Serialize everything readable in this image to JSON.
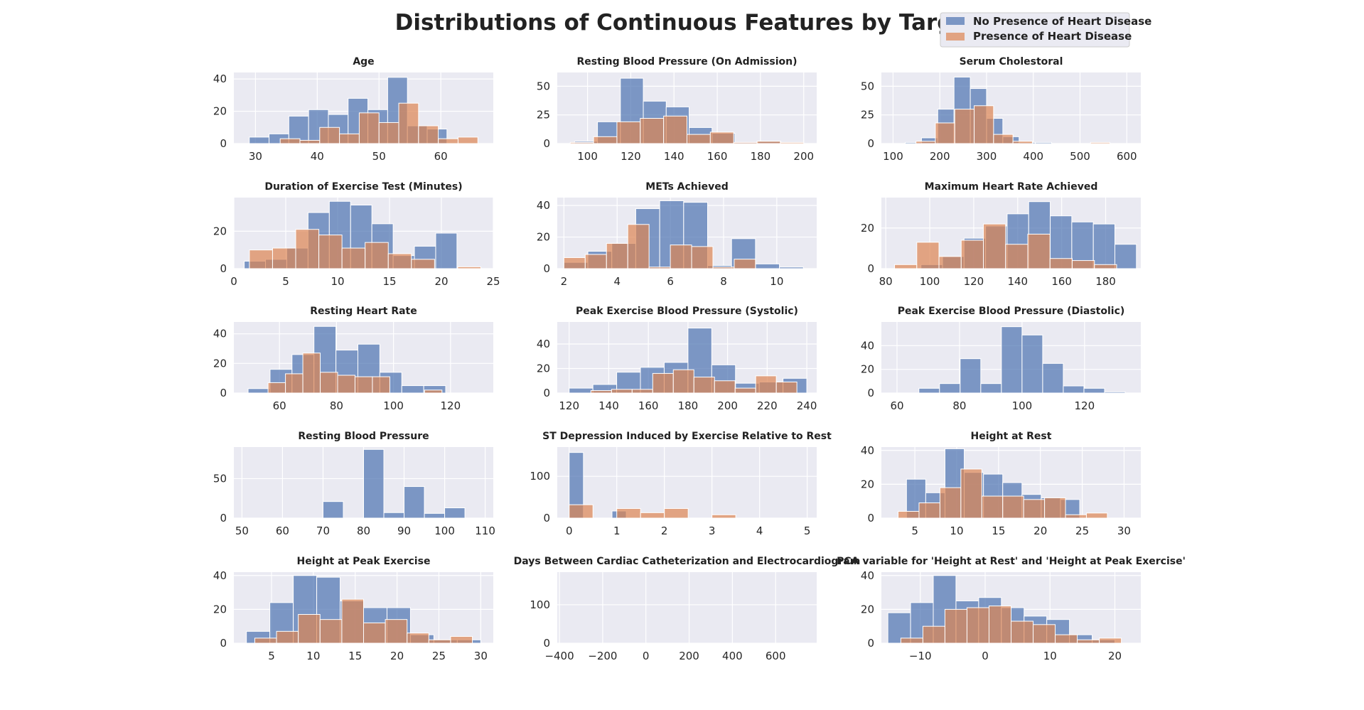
{
  "figure": {
    "title": "Distributions of Continuous Features by Target",
    "legend": [
      "No Presence of Heart Disease",
      "Presence of Heart Disease"
    ],
    "colors": {
      "no_disease": "#4c72b0",
      "disease": "#dd8452",
      "axes_bg": "#eaeaf2",
      "grid": "#ffffff"
    },
    "alpha": 0.7
  },
  "chart_data": [
    {
      "type": "histogram",
      "title": "Age",
      "xlim": [
        26.5,
        68.5
      ],
      "ylim": [
        0,
        44
      ],
      "xticks": [
        30,
        40,
        50,
        60
      ],
      "yticks": [
        0,
        20,
        40
      ],
      "series": [
        {
          "name": "No Presence of Heart Disease",
          "edges": [
            29,
            32.2,
            35.4,
            38.6,
            41.8,
            45,
            48.2,
            51.4,
            54.6,
            57.8,
            61
          ],
          "counts": [
            4,
            6,
            17,
            21,
            18,
            28,
            21,
            41,
            11,
            9
          ]
        },
        {
          "name": "Presence of Heart Disease",
          "edges": [
            34,
            37.2,
            40.4,
            43.6,
            46.8,
            50,
            53.2,
            56.4,
            59.6,
            62.8,
            66
          ],
          "counts": [
            3,
            2,
            10,
            6,
            19,
            13,
            25,
            11,
            3,
            4
          ]
        }
      ]
    },
    {
      "type": "histogram",
      "title": "Resting Blood Pressure (On Admission)",
      "xlim": [
        86,
        206
      ],
      "ylim": [
        0,
        62
      ],
      "xticks": [
        100,
        120,
        140,
        160,
        180,
        200
      ],
      "yticks": [
        0,
        25,
        50
      ],
      "series": [
        {
          "name": "No Presence of Heart Disease",
          "edges": [
            94,
            104.6,
            115.2,
            125.8,
            136.4,
            147,
            157.6,
            168.2,
            178.8,
            189.4,
            200
          ],
          "counts": [
            2,
            19,
            57,
            37,
            32,
            14,
            9,
            1,
            2,
            0
          ]
        },
        {
          "name": "Presence of Heart Disease",
          "edges": [
            92,
            102.8,
            113.6,
            124.4,
            135.2,
            146,
            156.8,
            167.6,
            178.4,
            189.2,
            200
          ],
          "counts": [
            1,
            6,
            19,
            22,
            24,
            8,
            10,
            1,
            2,
            1
          ]
        }
      ]
    },
    {
      "type": "histogram",
      "title": "Serum Cholestoral",
      "xlim": [
        75,
        630
      ],
      "ylim": [
        0,
        62
      ],
      "xticks": [
        100,
        200,
        300,
        400,
        500,
        600
      ],
      "yticks": [
        0,
        25,
        50
      ],
      "series": [
        {
          "name": "No Presence of Heart Disease",
          "edges": [
            126,
            160.8,
            195.6,
            230.4,
            265.2,
            300,
            334.8,
            369.6,
            404.4,
            439.2,
            474
          ],
          "counts": [
            1,
            5,
            30,
            58,
            48,
            22,
            6,
            1,
            1,
            0
          ]
        },
        {
          "name": "Presence of Heart Disease",
          "edges": [
            149,
            190.5,
            232,
            273.5,
            315,
            356.5,
            398,
            439.5,
            481,
            522.5,
            564
          ],
          "counts": [
            2,
            18,
            30,
            33,
            8,
            2,
            0,
            0,
            0,
            1
          ]
        }
      ]
    },
    {
      "type": "histogram",
      "title": "Duration of Exercise Test (Minutes)",
      "xlim": [
        0,
        25
      ],
      "ylim": [
        0,
        38
      ],
      "xticks": [
        0,
        5,
        10,
        15,
        20,
        25
      ],
      "yticks": [
        0,
        20
      ],
      "series": [
        {
          "name": "No Presence of Heart Disease",
          "edges": [
            1,
            3.05,
            5.1,
            7.15,
            9.2,
            11.25,
            13.3,
            15.35,
            17.4,
            19.45,
            21.5
          ],
          "counts": [
            4,
            5,
            11,
            30,
            36,
            34,
            24,
            7,
            12,
            19
          ]
        },
        {
          "name": "Presence of Heart Disease",
          "edges": [
            1.5,
            3.73,
            5.96,
            8.19,
            10.42,
            12.65,
            14.88,
            17.11,
            19.34,
            21.57,
            23.8
          ],
          "counts": [
            10,
            11,
            21,
            18,
            11,
            14,
            8,
            5,
            0,
            1
          ]
        }
      ]
    },
    {
      "type": "histogram",
      "title": "METs Achieved",
      "xlim": [
        1.75,
        11.5
      ],
      "ylim": [
        0,
        45
      ],
      "xticks": [
        2,
        4,
        6,
        8,
        10
      ],
      "yticks": [
        0,
        20,
        40
      ],
      "series": [
        {
          "name": "No Presence of Heart Disease",
          "edges": [
            2,
            2.9,
            3.8,
            4.7,
            5.6,
            6.5,
            7.4,
            8.3,
            9.2,
            10.1,
            11
          ],
          "counts": [
            4,
            11,
            16,
            38,
            43,
            42,
            2,
            19,
            3,
            1
          ]
        },
        {
          "name": "Presence of Heart Disease",
          "edges": [
            2,
            2.8,
            3.6,
            4.4,
            5.2,
            6,
            6.8,
            7.6,
            8.4,
            9.2,
            10
          ],
          "counts": [
            7,
            9,
            16,
            28,
            1,
            15,
            14,
            1,
            6,
            0
          ]
        }
      ]
    },
    {
      "type": "histogram",
      "title": "Maximum Heart Rate Achieved",
      "xlim": [
        78,
        196
      ],
      "ylim": [
        0,
        35
      ],
      "xticks": [
        80,
        100,
        120,
        140,
        160,
        180
      ],
      "yticks": [
        0,
        20
      ],
      "series": [
        {
          "name": "No Presence of Heart Disease",
          "edges": [
            96,
            105.8,
            115.6,
            125.4,
            135.2,
            145,
            154.8,
            164.6,
            174.4,
            184.2,
            194
          ],
          "counts": [
            2,
            6,
            15,
            21,
            27,
            33,
            26,
            23,
            22,
            12
          ]
        },
        {
          "name": "Presence of Heart Disease",
          "edges": [
            84,
            94.1,
            104.2,
            114.3,
            124.4,
            134.5,
            144.6,
            154.7,
            164.8,
            174.9,
            185
          ],
          "counts": [
            2,
            13,
            6,
            14,
            22,
            12,
            17,
            5,
            4,
            2
          ]
        }
      ]
    },
    {
      "type": "histogram",
      "title": "Resting Heart Rate",
      "xlim": [
        44,
        135
      ],
      "ylim": [
        0,
        48
      ],
      "xticks": [
        60,
        80,
        100,
        120
      ],
      "yticks": [
        0,
        20,
        40
      ],
      "series": [
        {
          "name": "No Presence of Heart Disease",
          "edges": [
            49,
            56.7,
            64.4,
            72.1,
            79.8,
            87.5,
            95.2,
            102.9,
            110.6,
            118.3,
            126
          ],
          "counts": [
            3,
            16,
            26,
            45,
            29,
            33,
            14,
            5,
            5,
            0
          ]
        },
        {
          "name": "Presence of Heart Disease",
          "edges": [
            56,
            62.1,
            68.2,
            74.3,
            80.4,
            86.5,
            92.6,
            98.7,
            104.8,
            110.9,
            117
          ],
          "counts": [
            7,
            13,
            27,
            14,
            12,
            11,
            11,
            0,
            0,
            2
          ]
        }
      ]
    },
    {
      "type": "histogram",
      "title": "Peak Exercise Blood Pressure (Systolic)",
      "xlim": [
        114,
        245
      ],
      "ylim": [
        0,
        58
      ],
      "xticks": [
        120,
        140,
        160,
        180,
        200,
        220,
        240
      ],
      "yticks": [
        0,
        20,
        40
      ],
      "series": [
        {
          "name": "No Presence of Heart Disease",
          "edges": [
            120,
            132,
            144,
            156,
            168,
            180,
            192,
            204,
            216,
            228,
            240
          ],
          "counts": [
            4,
            7,
            17,
            21,
            25,
            53,
            23,
            8,
            9,
            12
          ]
        },
        {
          "name": "Presence of Heart Disease",
          "edges": [
            131,
            141.4,
            151.8,
            162.2,
            172.6,
            183,
            193.4,
            203.8,
            214.2,
            224.6,
            235
          ],
          "counts": [
            2,
            3,
            3,
            16,
            19,
            13,
            10,
            4,
            14,
            9
          ]
        }
      ]
    },
    {
      "type": "histogram",
      "title": "Peak Exercise Blood Pressure (Diastolic)",
      "xlim": [
        55,
        138
      ],
      "ylim": [
        0,
        60
      ],
      "xticks": [
        60,
        80,
        100,
        120
      ],
      "yticks": [
        0,
        20,
        40
      ],
      "series": [
        {
          "name": "No Presence of Heart Disease",
          "edges": [
            67,
            73.6,
            80.2,
            86.8,
            93.4,
            100,
            106.6,
            113.2,
            119.8,
            126.4,
            133
          ],
          "counts": [
            4,
            8,
            29,
            8,
            56,
            49,
            25,
            6,
            4,
            1
          ]
        },
        {
          "name": "Presence of Heart Disease",
          "edges": [
            76,
            81.9,
            87.8,
            93.7,
            99.6,
            105.5,
            111.4,
            117.3,
            123.2,
            129.1,
            135
          ],
          "counts": [
            0,
            0,
            0,
            0,
            0,
            0,
            0,
            0,
            0,
            0
          ]
        }
      ]
    },
    {
      "type": "histogram",
      "title": "Resting Blood Pressure",
      "xlim": [
        48,
        112
      ],
      "ylim": [
        0,
        90
      ],
      "xticks": [
        50,
        60,
        70,
        80,
        90,
        100,
        110
      ],
      "yticks": [
        0,
        50
      ],
      "series": [
        {
          "name": "No Presence of Heart Disease",
          "edges": [
            60,
            65,
            70,
            75,
            80,
            85,
            90,
            95,
            100,
            105
          ],
          "counts": [
            0,
            0,
            21,
            0,
            87,
            7,
            40,
            6,
            13
          ]
        },
        {
          "name": "Presence of Heart Disease",
          "edges": [
            68,
            73.7,
            79.4,
            85.1,
            90.8,
            96.5,
            102.2,
            107.9,
            113.6,
            119.3,
            125
          ],
          "counts": [
            0,
            0,
            0,
            0,
            0,
            0,
            0,
            0,
            0,
            0
          ]
        }
      ]
    },
    {
      "type": "histogram",
      "title": "ST Depression Induced by Exercise Relative to Rest",
      "xlim": [
        -0.25,
        5.2
      ],
      "ylim": [
        0,
        170
      ],
      "xticks": [
        0,
        1,
        2,
        3,
        4,
        5
      ],
      "yticks": [
        0,
        100
      ],
      "series": [
        {
          "name": "No Presence of Heart Disease",
          "edges": [
            0,
            0.3,
            0.6,
            0.9,
            1.2,
            1.5,
            1.8,
            2.1,
            2.4,
            2.7,
            3
          ],
          "counts": [
            157,
            0,
            0,
            17,
            0,
            0,
            0,
            0,
            0,
            0
          ]
        },
        {
          "name": "Presence of Heart Disease",
          "edges": [
            0,
            0.5,
            1,
            1.5,
            2,
            2.5,
            3,
            3.5
          ],
          "counts": [
            32,
            0,
            23,
            13,
            23,
            0,
            8
          ]
        }
      ]
    },
    {
      "type": "histogram",
      "title": "Height at Rest",
      "xlim": [
        1,
        32
      ],
      "ylim": [
        0,
        42
      ],
      "xticks": [
        5,
        10,
        15,
        20,
        25,
        30
      ],
      "yticks": [
        0,
        20,
        40
      ],
      "series": [
        {
          "name": "No Presence of Heart Disease",
          "edges": [
            4,
            6.3,
            8.6,
            10.9,
            13.2,
            15.5,
            17.8,
            20.1,
            22.4,
            24.7,
            27
          ],
          "counts": [
            23,
            15,
            41,
            27,
            26,
            21,
            14,
            12,
            11,
            0
          ]
        },
        {
          "name": "Presence of Heart Disease",
          "edges": [
            3,
            5.5,
            8,
            10.5,
            13,
            15.5,
            18,
            20.5,
            23,
            25.5,
            28
          ],
          "counts": [
            4,
            9,
            18,
            29,
            13,
            13,
            11,
            12,
            2,
            3
          ]
        }
      ]
    },
    {
      "type": "histogram",
      "title": "Height at Peak Exercise",
      "xlim": [
        0.5,
        31.5
      ],
      "ylim": [
        0,
        42
      ],
      "xticks": [
        5,
        10,
        15,
        20,
        25,
        30
      ],
      "yticks": [
        0,
        20,
        40
      ],
      "series": [
        {
          "name": "No Presence of Heart Disease",
          "edges": [
            2,
            4.8,
            7.6,
            10.4,
            13.2,
            16,
            18.8,
            21.6,
            24.4,
            27.2,
            30
          ],
          "counts": [
            7,
            24,
            40,
            39,
            25,
            21,
            21,
            5,
            2,
            2
          ]
        },
        {
          "name": "Presence of Heart Disease",
          "edges": [
            3,
            5.6,
            8.2,
            10.8,
            13.4,
            16,
            18.6,
            21.2,
            23.8,
            26.4,
            29
          ],
          "counts": [
            3,
            7,
            17,
            14,
            26,
            12,
            14,
            6,
            2,
            4
          ]
        }
      ]
    },
    {
      "type": "histogram",
      "title": "Days Between Cardiac Catheterization and Electrocardiogram",
      "xlim": [
        -410,
        790
      ],
      "ylim": [
        0,
        185
      ],
      "xticks": [
        -400,
        -200,
        0,
        200,
        400,
        600
      ],
      "yticks": [
        0,
        100
      ],
      "series": [
        {
          "name": "No Presence of Heart Disease",
          "edges": [
            -389,
            -320,
            -251,
            -182,
            -113,
            -44,
            25,
            94,
            163,
            232,
            301
          ],
          "counts": [
            0,
            0,
            0,
            0,
            0,
            0,
            0,
            0,
            0,
            0
          ]
        },
        {
          "name": "Presence of Heart Disease",
          "edges": [
            -20,
            0,
            20,
            40,
            60,
            80
          ],
          "counts": [
            0,
            0,
            0,
            0,
            0
          ]
        }
      ]
    },
    {
      "type": "histogram",
      "title": "PCA variable for 'Height at Rest' and 'Height at Peak Exercise'",
      "xlim": [
        -16,
        24
      ],
      "ylim": [
        0,
        42
      ],
      "xticks": [
        -10,
        0,
        10,
        20
      ],
      "yticks": [
        0,
        20,
        40
      ],
      "series": [
        {
          "name": "No Presence of Heart Disease",
          "edges": [
            -15,
            -11.5,
            -8,
            -4.5,
            -1,
            2.5,
            6,
            9.5,
            13,
            16.5,
            20
          ],
          "counts": [
            18,
            24,
            40,
            25,
            27,
            21,
            16,
            14,
            5,
            2
          ]
        },
        {
          "name": "Presence of Heart Disease",
          "edges": [
            -13,
            -9.6,
            -6.2,
            -2.8,
            0.6,
            4,
            7.4,
            10.8,
            14.2,
            17.6,
            21
          ],
          "counts": [
            3,
            10,
            20,
            21,
            22,
            13,
            11,
            5,
            2,
            3
          ]
        }
      ]
    }
  ]
}
